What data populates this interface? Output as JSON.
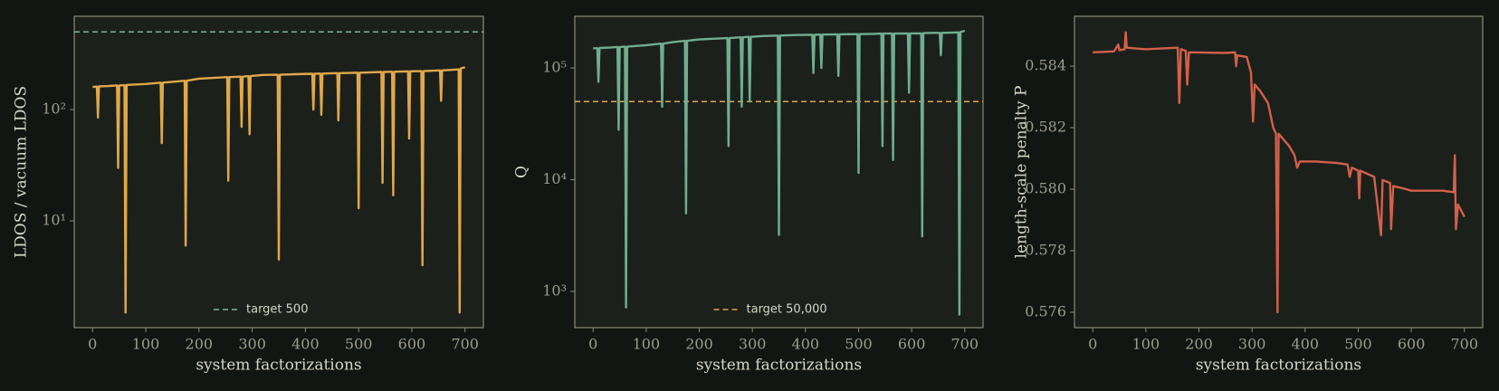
{
  "chart_data": [
    {
      "type": "line",
      "log_y": true,
      "color": "#e0a84a",
      "xlabel": "system factorizations",
      "ylabel": "LDOS / vacuum LDOS",
      "x": [
        0,
        8,
        10,
        12,
        30,
        46,
        48,
        50,
        60,
        62,
        64,
        100,
        128,
        130,
        132,
        150,
        173,
        175,
        177,
        200,
        253,
        255,
        257,
        278,
        280,
        282,
        293,
        295,
        297,
        320,
        348,
        350,
        352,
        380,
        413,
        415,
        417,
        428,
        430,
        432,
        460,
        462,
        464,
        498,
        500,
        502,
        530,
        543,
        545,
        547,
        563,
        565,
        567,
        593,
        595,
        597,
        618,
        620,
        622,
        640,
        653,
        655,
        657,
        688,
        690,
        692,
        700
      ],
      "values": [
        160,
        161,
        85,
        162,
        163,
        165,
        30,
        165,
        166,
        1.5,
        167,
        170,
        175,
        50,
        175,
        178,
        182,
        6,
        182,
        190,
        196,
        23,
        196,
        198,
        70,
        198,
        200,
        60,
        200,
        205,
        206,
        4.5,
        206,
        208,
        210,
        100,
        210,
        211,
        90,
        211,
        213,
        80,
        213,
        215,
        13,
        215,
        217,
        218,
        22,
        218,
        219,
        17,
        219,
        221,
        55,
        221,
        222,
        4,
        222,
        224,
        225,
        120,
        225,
        230,
        1.5,
        235,
        240
      ],
      "xlim": [
        -34.5,
        734.5
      ],
      "ylim": [
        1.1,
        690
      ],
      "xticks": [
        0,
        100,
        200,
        300,
        400,
        500,
        600,
        700
      ],
      "yticks": [
        {
          "value": 10,
          "label": "10¹"
        },
        {
          "value": 100,
          "label": "10²"
        }
      ],
      "hline": {
        "value": 500,
        "label": "target 500",
        "color": "#7fb39a"
      },
      "legend": "lower center"
    },
    {
      "type": "line",
      "log_y": true,
      "color": "#6fae8e",
      "xlabel": "system factorizations",
      "ylabel": "Q",
      "x": [
        0,
        8,
        10,
        12,
        30,
        46,
        48,
        50,
        60,
        62,
        64,
        100,
        128,
        130,
        132,
        150,
        173,
        175,
        177,
        200,
        253,
        255,
        257,
        278,
        280,
        282,
        293,
        295,
        297,
        320,
        348,
        350,
        352,
        380,
        413,
        415,
        417,
        428,
        430,
        432,
        460,
        462,
        464,
        498,
        500,
        502,
        530,
        543,
        545,
        547,
        563,
        565,
        567,
        593,
        595,
        597,
        618,
        620,
        622,
        640,
        653,
        655,
        657,
        688,
        690,
        692,
        700
      ],
      "values": [
        150000,
        150000,
        75000,
        151000,
        152000,
        154000,
        28000,
        154000,
        155000,
        720,
        155000,
        160000,
        165000,
        45000,
        165000,
        170000,
        175000,
        5000,
        175000,
        180000,
        185000,
        20000,
        185000,
        188000,
        45000,
        188000,
        190000,
        50000,
        190000,
        193000,
        195000,
        3200,
        195000,
        197000,
        198000,
        90000,
        198000,
        199000,
        100000,
        199000,
        200000,
        85000,
        200000,
        201000,
        11500,
        201000,
        202000,
        203000,
        20000,
        203000,
        203000,
        15000,
        203000,
        204000,
        60000,
        204000,
        204000,
        3100,
        205000,
        206000,
        206000,
        130000,
        206000,
        208000,
        620,
        210000,
        215000
      ],
      "xlim": [
        -34.5,
        734.5
      ],
      "ylim": [
        474,
        290000
      ],
      "xticks": [
        0,
        100,
        200,
        300,
        400,
        500,
        600,
        700
      ],
      "yticks": [
        {
          "value": 1000,
          "label": "10³"
        },
        {
          "value": 10000,
          "label": "10⁴"
        },
        {
          "value": 100000,
          "label": "10⁵"
        }
      ],
      "hline": {
        "value": 50000,
        "label": "target 50,000",
        "color": "#e0a84a"
      },
      "legend": "lower center"
    },
    {
      "type": "line",
      "log_y": false,
      "color": "#d2604a",
      "xlabel": "system factorizations",
      "ylabel": "length-scale penalty P",
      "x": [
        0,
        40,
        48,
        50,
        60,
        62,
        64,
        100,
        160,
        163,
        166,
        175,
        178,
        181,
        250,
        268,
        270,
        272,
        290,
        298,
        302,
        305,
        315,
        330,
        340,
        345,
        348,
        350,
        360,
        370,
        380,
        385,
        390,
        420,
        460,
        480,
        484,
        488,
        500,
        502,
        504,
        530,
        543,
        546,
        560,
        562,
        566,
        590,
        600,
        660,
        680,
        682,
        684,
        688,
        700
      ],
      "values": [
        0.58445,
        0.58448,
        0.5847,
        0.58452,
        0.58455,
        0.5851,
        0.5846,
        0.58455,
        0.5846,
        0.5828,
        0.58455,
        0.5845,
        0.5834,
        0.58445,
        0.58443,
        0.58445,
        0.584,
        0.58435,
        0.5843,
        0.5838,
        0.5822,
        0.5834,
        0.5832,
        0.5828,
        0.582,
        0.5818,
        0.576,
        0.5818,
        0.5816,
        0.5814,
        0.5811,
        0.5807,
        0.5809,
        0.5809,
        0.58085,
        0.5808,
        0.5804,
        0.5807,
        0.5806,
        0.5797,
        0.5806,
        0.5804,
        0.5785,
        0.5803,
        0.5802,
        0.5787,
        0.5801,
        0.58,
        0.57995,
        0.57995,
        0.5799,
        0.5811,
        0.5787,
        0.5795,
        0.5791
      ],
      "xlim": [
        -34.5,
        734.5
      ],
      "ylim": [
        0.5755,
        0.58562
      ],
      "xticks": [
        0,
        100,
        200,
        300,
        400,
        500,
        600,
        700
      ],
      "yticks": [
        0.576,
        0.578,
        {
          "value": 0.58,
          "label": "0.580"
        },
        0.582,
        0.584
      ]
    }
  ]
}
